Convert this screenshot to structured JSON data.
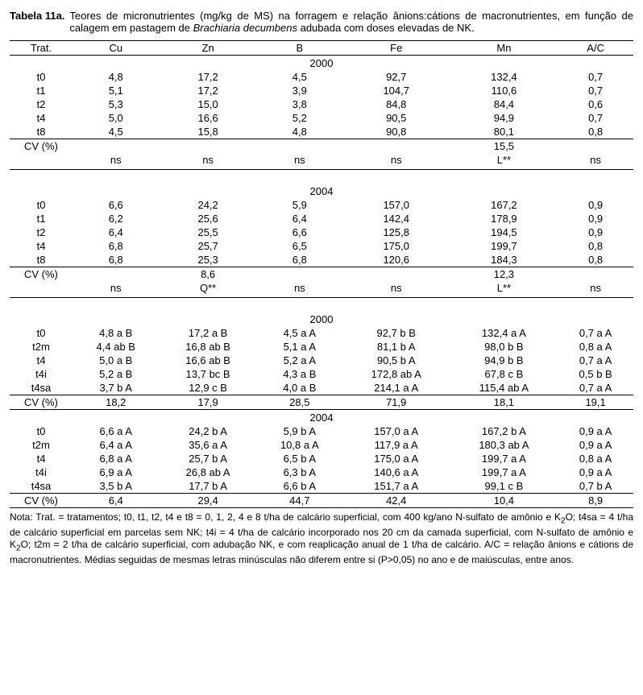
{
  "title_label": "Tabela 11a.",
  "title_text_a": "Teores de micronutrientes (mg/kg de MS) na forragem e relação ânions:cátions de macronutrientes, em função de calagem em pastagem de ",
  "title_text_em": "Brachiaria decumbens",
  "title_text_b": " adubada com doses elevadas de NK.",
  "headers": {
    "c0": "Trat.",
    "c1": "Cu",
    "c2": "Zn",
    "c3": "B",
    "c4": "Fe",
    "c5": "Mn",
    "c6": "A/C"
  },
  "cv_label": "CV (%)",
  "ns": "ns",
  "sec1": {
    "year": "2000",
    "rows": [
      {
        "t": "t0",
        "cu": "4,8",
        "zn": "17,2",
        "b": "4,5",
        "fe": "92,7",
        "mn": "132,4",
        "ac": "0,7"
      },
      {
        "t": "t1",
        "cu": "5,1",
        "zn": "17,2",
        "b": "3,9",
        "fe": "104,7",
        "mn": "110,6",
        "ac": "0,7"
      },
      {
        "t": "t2",
        "cu": "5,3",
        "zn": "15,0",
        "b": "3,8",
        "fe": "84,8",
        "mn": "84,4",
        "ac": "0,6"
      },
      {
        "t": "t4",
        "cu": "5,0",
        "zn": "16,6",
        "b": "5,2",
        "fe": "90,5",
        "mn": "94,9",
        "ac": "0,7"
      },
      {
        "t": "t8",
        "cu": "4,5",
        "zn": "15,8",
        "b": "4,8",
        "fe": "90,8",
        "mn": "80,1",
        "ac": "0,8"
      }
    ],
    "cv_mn": "15,5",
    "sig_mn": "L**"
  },
  "sec2": {
    "year": "2004",
    "rows": [
      {
        "t": "t0",
        "cu": "6,6",
        "zn": "24,2",
        "b": "5,9",
        "fe": "157,0",
        "mn": "167,2",
        "ac": "0,9"
      },
      {
        "t": "t1",
        "cu": "6,2",
        "zn": "25,6",
        "b": "6,4",
        "fe": "142,4",
        "mn": "178,9",
        "ac": "0,9"
      },
      {
        "t": "t2",
        "cu": "6,4",
        "zn": "25,5",
        "b": "6,6",
        "fe": "125,8",
        "mn": "194,5",
        "ac": "0,9"
      },
      {
        "t": "t4",
        "cu": "6,8",
        "zn": "25,7",
        "b": "6,5",
        "fe": "175,0",
        "mn": "199,7",
        "ac": "0,8"
      },
      {
        "t": "t8",
        "cu": "6,8",
        "zn": "25,3",
        "b": "6,8",
        "fe": "120,6",
        "mn": "184,3",
        "ac": "0,8"
      }
    ],
    "cv_zn": "8,6",
    "cv_mn": "12,3",
    "sig_zn": "Q**",
    "sig_mn": "L**"
  },
  "sec3": {
    "year": "2000",
    "rows": [
      {
        "t": "t0",
        "cu": "4,8 a B",
        "zn": "17,2 a B",
        "b": "4,5 a A",
        "fe": "92,7 b B",
        "mn": "132,4 a A",
        "ac": "0,7 a A"
      },
      {
        "t": "t2m",
        "cu": "4,4 ab B",
        "zn": "16,8 ab B",
        "b": "5,1 a A",
        "fe": "81,1 b A",
        "mn": "98,0 b B",
        "ac": "0,8 a A"
      },
      {
        "t": "t4",
        "cu": "5,0 a B",
        "zn": "16,6 ab B",
        "b": "5,2 a A",
        "fe": "90,5 b A",
        "mn": "94,9 b B",
        "ac": "0,7 a A"
      },
      {
        "t": "t4i",
        "cu": "5,2 a B",
        "zn": "13,7 bc B",
        "b": "4,3 a B",
        "fe": "172,8 ab A",
        "mn": "67,8 c B",
        "ac": "0,5 b B"
      },
      {
        "t": "t4sa",
        "cu": "3,7 b A",
        "zn": "12,9 c B",
        "b": "4,0 a B",
        "fe": "214,1 a A",
        "mn": "115,4 ab A",
        "ac": "0,7 a A"
      }
    ],
    "cv": {
      "cu": "18,2",
      "zn": "17,9",
      "b": "28,5",
      "fe": "71,9",
      "mn": "18,1",
      "ac": "19,1"
    }
  },
  "sec4": {
    "year": "2004",
    "rows": [
      {
        "t": "t0",
        "cu": "6,6 a A",
        "zn": "24,2 b A",
        "b": "5,9 b A",
        "fe": "157,0 a A",
        "mn": "167,2 b A",
        "ac": "0,9 a A"
      },
      {
        "t": "t2m",
        "cu": "6,4 a A",
        "zn": "35,6 a A",
        "b": "10,8 a A",
        "fe": "117,9 a A",
        "mn": "180,3 ab A",
        "ac": "0,9 a A"
      },
      {
        "t": "t4",
        "cu": "6,8 a A",
        "zn": "25,7 b A",
        "b": "6,5 b A",
        "fe": "175,0 a A",
        "mn": "199,7 a A",
        "ac": "0,8 a A"
      },
      {
        "t": "t4i",
        "cu": "6,9 a A",
        "zn": "26,8 ab A",
        "b": "6,3 b A",
        "fe": "140,6 a A",
        "mn": "199,7 a A",
        "ac": "0,9 a A"
      },
      {
        "t": "t4sa",
        "cu": "3,5 b A",
        "zn": "17,7 b A",
        "b": "6,6 b A",
        "fe": "151,7 a A",
        "mn": "99,1 c B",
        "ac": "0,7 b A"
      }
    ],
    "cv": {
      "cu": "6,4",
      "zn": "29,4",
      "b": "44,7",
      "fe": "42,4",
      "mn": "10,4",
      "ac": "8,9"
    }
  },
  "note_a": "Nota: Trat. = tratamentos; t0, t1, t2, t4 e t8 = 0, 1, 2, 4 e 8 t/ha de calcário superficial, com 400 kg/ano N-sulfato de amônio e K",
  "note_b": "O; t4sa = 4 t/ha de calcário superficial em parcelas sem NK; t4i = 4 t/ha de calcário incorporado nos 20 cm da camada superficial, com N-sulfato de amônio e K",
  "note_c": "O; t2m = 2 t/ha de calcário superficial, com adubação NK, e com reaplicação anual de 1 t/ha de calcário. A/C = relação ânions e cátions de macronutrientes. Médias seguidas de mesmas letras minúsculas não diferem entre si (P>0,05) no ano e de maiúsculas, entre anos.",
  "sub2": "2"
}
